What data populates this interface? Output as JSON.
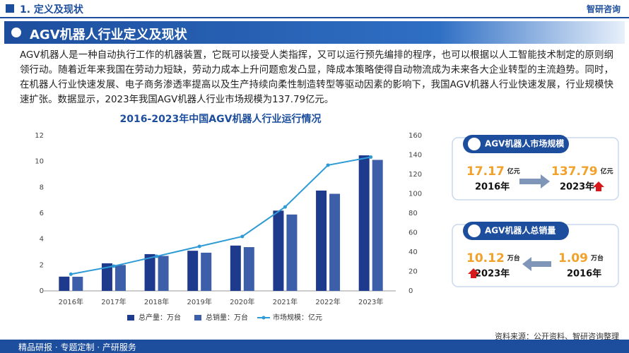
{
  "header": {
    "section": "1. 定义及现状",
    "logo": "智研咨询"
  },
  "banner": "AGV机器人行业定义及现状",
  "paragraph": "AGV机器人是一种自动执行工作的机器装置，它既可以接受人类指挥，又可以运行预先编排的程序，也可以根据以人工智能技术制定的原则纲领行动。随着近年来我国在劳动力短缺，劳动力成本上升问题愈发凸显，降成本策略使得自动物流成为未来各大企业转型的主流趋势。同时，在机器人行业快速发展、电子商务渗透率提高以及生产持续向柔性制造转型等驱动因素的影响下，我国AGV机器人行业快速发展，行业规模快速扩张。数据显示，2023年我国AGV机器人行业市场规模为137.79亿元。",
  "chart_data": {
    "type": "bar",
    "title": "2016-2023年中国AGV机器人行业运行情况",
    "categories": [
      "2016年",
      "2017年",
      "2018年",
      "2019年",
      "2020年",
      "2021年",
      "2022年",
      "2023年"
    ],
    "series": [
      {
        "name": "总产量：万台",
        "color": "#1e3a8c",
        "type": "bar",
        "values": [
          1.1,
          2.13,
          2.84,
          3.1,
          3.5,
          6.2,
          7.75,
          10.47
        ]
      },
      {
        "name": "总销量：万台",
        "color": "#3d5ea8",
        "type": "bar",
        "values": [
          1.09,
          2.0,
          2.7,
          2.95,
          3.38,
          5.9,
          7.5,
          10.12
        ]
      },
      {
        "name": "市场规模：亿元",
        "color": "#2e9bd6",
        "type": "line",
        "axis": "y2",
        "values": [
          17.17,
          25.5,
          35.6,
          45.8,
          56,
          86.5,
          129.5,
          137.79
        ]
      }
    ],
    "ylim": [
      0,
      12
    ],
    "yticks": [
      0,
      2,
      4,
      6,
      8,
      10,
      12
    ],
    "y2lim": [
      0,
      160
    ],
    "y2ticks": [
      0,
      20,
      40,
      60,
      80,
      100,
      120,
      140,
      160
    ],
    "grid": false
  },
  "cards": [
    {
      "title": "AGV机器人市场规模",
      "items": [
        {
          "value": 17.17,
          "unit": "亿元",
          "year": "2016年"
        },
        {
          "value": 137.79,
          "unit": "亿元",
          "year": "2023年"
        }
      ]
    },
    {
      "title": "AGV机器人总销量",
      "items": [
        {
          "value": 10.12,
          "unit": "万台",
          "year": "2023年"
        },
        {
          "value": 1.09,
          "unit": "万台",
          "year": "2016年"
        }
      ]
    }
  ],
  "footer": {
    "slogan": "精品研报 · 专题定制 · 产研服务",
    "source": "资料来源：公开资料、智研咨询整理"
  }
}
